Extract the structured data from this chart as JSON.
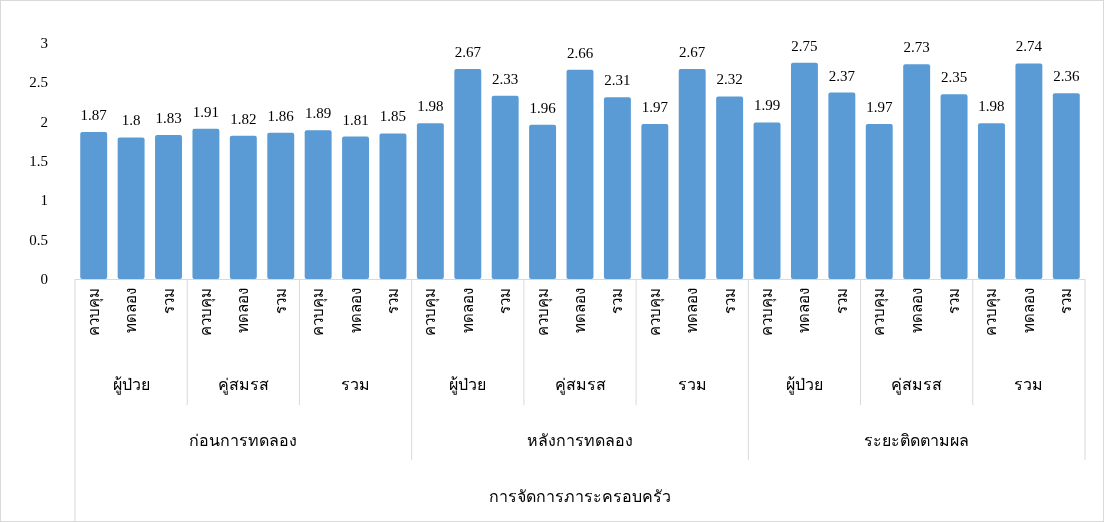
{
  "chart_data": {
    "type": "bar",
    "categories": [
      "ควบคุม",
      "ทดลอง",
      "รวม",
      "ควบคุม",
      "ทดลอง",
      "รวม",
      "ควบคุม",
      "ทดลอง",
      "รวม",
      "ควบคุม",
      "ทดลอง",
      "รวม",
      "ควบคุม",
      "ทดลอง",
      "รวม",
      "ควบคุม",
      "ทดลอง",
      "รวม",
      "ควบคุม",
      "ทดลอง",
      "รวม",
      "ควบคุม",
      "ทดลอง",
      "รวม",
      "ควบคุม",
      "ทดลอง",
      "รวม"
    ],
    "values": [
      1.87,
      1.8,
      1.83,
      1.91,
      1.82,
      1.86,
      1.89,
      1.81,
      1.85,
      1.98,
      2.67,
      2.33,
      1.96,
      2.66,
      2.31,
      1.97,
      2.67,
      2.32,
      1.99,
      2.75,
      2.37,
      1.97,
      2.73,
      2.35,
      1.98,
      2.74,
      2.36
    ],
    "color": "#5b9bd5",
    "data_labels": true,
    "ylim": [
      0,
      3
    ],
    "yticks": [
      0,
      0.5,
      1,
      1.5,
      2,
      2.5,
      3
    ],
    "annotations": [
      "ผู้ป่วย",
      "คู่สมรส",
      "รวม",
      "ผู้ป่วย",
      "คู่สมรส",
      "รวม",
      "ผู้ป่วย",
      "คู่สมรส",
      "รวม",
      "ก่อนการทดลอง",
      "หลังการทดลอง",
      "ระยะติดตามผล",
      "การจัดการภาระครอบครัว"
    ]
  }
}
